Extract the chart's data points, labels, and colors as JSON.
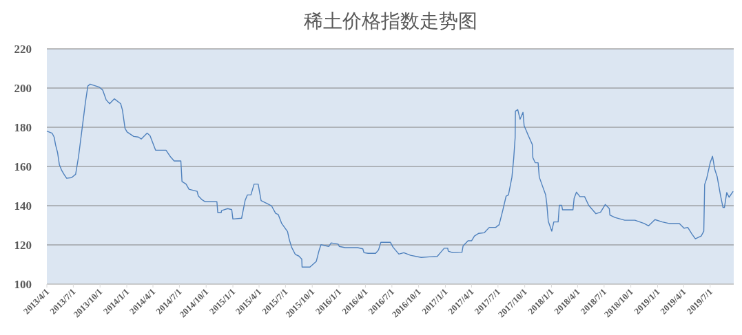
{
  "chart_data": {
    "type": "line",
    "title": "稀土价格指数走势图",
    "x": [
      "2013-04-01",
      "2013-04-19",
      "2013-04-26",
      "2013-05-01",
      "2013-05-08",
      "2013-05-14",
      "2013-05-22",
      "2013-05-30",
      "2013-06-08",
      "2013-06-25",
      "2013-07-09",
      "2013-07-19",
      "2013-07-31",
      "2013-08-12",
      "2013-08-20",
      "2013-08-28",
      "2013-09-28",
      "2013-10-10",
      "2013-10-22",
      "2013-11-03",
      "2013-11-19",
      "2013-12-11",
      "2013-12-17",
      "2013-12-26",
      "2014-01-02",
      "2014-01-25",
      "2014-02-10",
      "2014-02-20",
      "2014-03-12",
      "2014-03-22",
      "2014-04-10",
      "2014-05-16",
      "2014-06-01",
      "2014-06-13",
      "2014-07-06",
      "2014-07-10",
      "2014-07-24",
      "2014-08-03",
      "2014-08-31",
      "2014-09-04",
      "2014-09-17",
      "2014-09-28",
      "2014-11-07",
      "2014-11-10",
      "2014-11-22",
      "2014-11-23",
      "2014-12-14",
      "2014-12-28",
      "2015-01-01",
      "2015-01-31",
      "2015-02-12",
      "2015-02-20",
      "2015-03-04",
      "2015-03-15",
      "2015-03-29",
      "2015-04-08",
      "2015-05-02",
      "2015-05-14",
      "2015-05-28",
      "2015-06-06",
      "2015-06-18",
      "2015-07-08",
      "2015-07-14",
      "2015-07-22",
      "2015-08-04",
      "2015-08-16",
      "2015-08-26",
      "2015-08-27",
      "2015-09-23",
      "2015-10-15",
      "2015-10-25",
      "2015-10-31",
      "2015-11-27",
      "2015-12-05",
      "2015-12-29",
      "2016-01-02",
      "2016-01-22",
      "2016-03-05",
      "2016-03-23",
      "2016-03-27",
      "2016-04-10",
      "2016-05-06",
      "2016-05-16",
      "2016-05-24",
      "2016-06-26",
      "2016-07-05",
      "2016-07-13",
      "2016-07-25",
      "2016-08-11",
      "2016-09-03",
      "2016-10-10",
      "2016-11-07",
      "2016-12-04",
      "2016-12-16",
      "2016-12-28",
      "2017-01-09",
      "2017-01-11",
      "2017-01-27",
      "2017-02-27",
      "2017-03-03",
      "2017-03-20",
      "2017-04-01",
      "2017-04-11",
      "2017-04-26",
      "2017-05-15",
      "2017-06-01",
      "2017-06-23",
      "2017-07-05",
      "2017-07-17",
      "2017-07-29",
      "2017-08-06",
      "2017-08-18",
      "2017-08-24",
      "2017-08-29",
      "2017-08-30",
      "2017-09-07",
      "2017-09-15",
      "2017-09-25",
      "2017-09-29",
      "2017-10-13",
      "2017-10-27",
      "2017-10-29",
      "2017-11-06",
      "2017-11-16",
      "2017-11-20",
      "2017-12-02",
      "2017-12-12",
      "2017-12-16",
      "2017-12-21",
      "2018-01-02",
      "2018-01-09",
      "2018-01-24",
      "2018-01-28",
      "2018-02-05",
      "2018-02-08",
      "2018-03-16",
      "2018-03-20",
      "2018-03-28",
      "2018-04-09",
      "2018-04-25",
      "2018-05-09",
      "2018-06-03",
      "2018-06-19",
      "2018-07-05",
      "2018-07-19",
      "2018-07-21",
      "2018-08-07",
      "2018-09-10",
      "2018-10-15",
      "2018-11-16",
      "2018-12-01",
      "2018-12-23",
      "2019-01-17",
      "2019-02-10",
      "2019-03-17",
      "2019-04-02",
      "2019-04-15",
      "2019-04-29",
      "2019-05-11",
      "2019-05-31",
      "2019-06-09",
      "2019-06-12",
      "2019-06-19",
      "2019-07-01",
      "2019-07-09",
      "2019-07-17",
      "2019-07-25",
      "2019-08-06",
      "2019-08-14",
      "2019-08-19",
      "2019-08-27",
      "2019-09-04",
      "2019-09-18"
    ],
    "series": [
      {
        "color": "#4f81bd",
        "values": [
          178,
          177,
          175,
          171,
          167,
          161,
          158,
          156,
          154,
          154.3,
          156,
          165,
          179,
          193,
          201,
          202,
          200.5,
          199,
          194,
          192,
          194.5,
          192,
          188.8,
          179.4,
          177.6,
          175.3,
          175,
          174,
          177,
          175.7,
          168.3,
          168.3,
          164.8,
          162.8,
          162.8,
          152.3,
          151,
          148.4,
          147.3,
          145,
          143,
          142,
          142,
          136.5,
          136.5,
          137.5,
          138.5,
          138,
          133.2,
          133.6,
          142.6,
          145.5,
          145.5,
          151,
          151,
          142.6,
          140.8,
          139.9,
          136.1,
          135.5,
          130.9,
          126.8,
          122.7,
          118.8,
          115.1,
          114.3,
          112.7,
          108.7,
          108.7,
          111.6,
          117.4,
          120.1,
          119.2,
          121,
          120.4,
          119.2,
          118.6,
          118.6,
          118,
          116,
          115.7,
          115.7,
          117.4,
          121.3,
          121.3,
          118.8,
          117.4,
          115.3,
          116,
          114.7,
          113.6,
          113.9,
          114.1,
          116.2,
          118.3,
          118.3,
          116.8,
          116,
          116.2,
          119.5,
          122.1,
          122.1,
          124.5,
          125.9,
          126.2,
          128.9,
          128.9,
          130.3,
          137.3,
          144.9,
          145.5,
          154.6,
          164,
          174.7,
          188.2,
          189,
          184.1,
          187.6,
          180.8,
          175.9,
          171.2,
          164.5,
          161.9,
          161.9,
          154.6,
          149.6,
          145.5,
          140.8,
          132,
          127,
          131.7,
          131.7,
          140.2,
          140.2,
          137.9,
          137.9,
          143.8,
          146.9,
          144.6,
          144.6,
          140.2,
          135.9,
          136.7,
          140.6,
          138.5,
          135.2,
          134,
          132.6,
          132.6,
          130.9,
          129.7,
          132.9,
          131.7,
          130.9,
          130.9,
          128.5,
          128.9,
          125.6,
          123.1,
          124.5,
          127,
          150.8,
          153.9,
          161.9,
          165.2,
          158.4,
          154.8,
          144.9,
          139.1,
          139.1,
          146.7,
          144.3,
          147.3
        ]
      }
    ],
    "xlim": [
      "2013-04-01",
      "2019-09-20"
    ],
    "xticks": [
      {
        "value": "2013-04-01",
        "label": "2013/4/1"
      },
      {
        "value": "2013-07-01",
        "label": "2013/7/1"
      },
      {
        "value": "2013-10-01",
        "label": "2013/10/1"
      },
      {
        "value": "2014-01-01",
        "label": "2014/1/1"
      },
      {
        "value": "2014-04-01",
        "label": "2014/4/1"
      },
      {
        "value": "2014-07-01",
        "label": "2014/7/1"
      },
      {
        "value": "2014-10-01",
        "label": "2014/10/1"
      },
      {
        "value": "2015-01-01",
        "label": "2015/1/1"
      },
      {
        "value": "2015-04-01",
        "label": "2015/4/1"
      },
      {
        "value": "2015-07-01",
        "label": "2015/7/1"
      },
      {
        "value": "2015-10-01",
        "label": "2015/10/1"
      },
      {
        "value": "2016-01-01",
        "label": "2016/1/1"
      },
      {
        "value": "2016-04-01",
        "label": "2016/4/1"
      },
      {
        "value": "2016-07-01",
        "label": "2016/7/1"
      },
      {
        "value": "2016-10-01",
        "label": "2016/10/1"
      },
      {
        "value": "2017-01-01",
        "label": "2017/1/1"
      },
      {
        "value": "2017-04-01",
        "label": "2017/4/1"
      },
      {
        "value": "2017-07-01",
        "label": "2017/7/1"
      },
      {
        "value": "2017-10-01",
        "label": "2017/10/1"
      },
      {
        "value": "2018-01-01",
        "label": "2018/1/1"
      },
      {
        "value": "2018-04-01",
        "label": "2018/4/1"
      },
      {
        "value": "2018-07-01",
        "label": "2018/7/1"
      },
      {
        "value": "2018-10-01",
        "label": "2018/10/1"
      },
      {
        "value": "2019-01-01",
        "label": "2019/1/1"
      },
      {
        "value": "2019-04-01",
        "label": "2019/4/1"
      },
      {
        "value": "2019-07-01",
        "label": "2019/7/1"
      }
    ],
    "ylim": [
      100,
      220
    ],
    "yticks": [
      100,
      120,
      140,
      160,
      180,
      200,
      220
    ],
    "grid": "y"
  }
}
